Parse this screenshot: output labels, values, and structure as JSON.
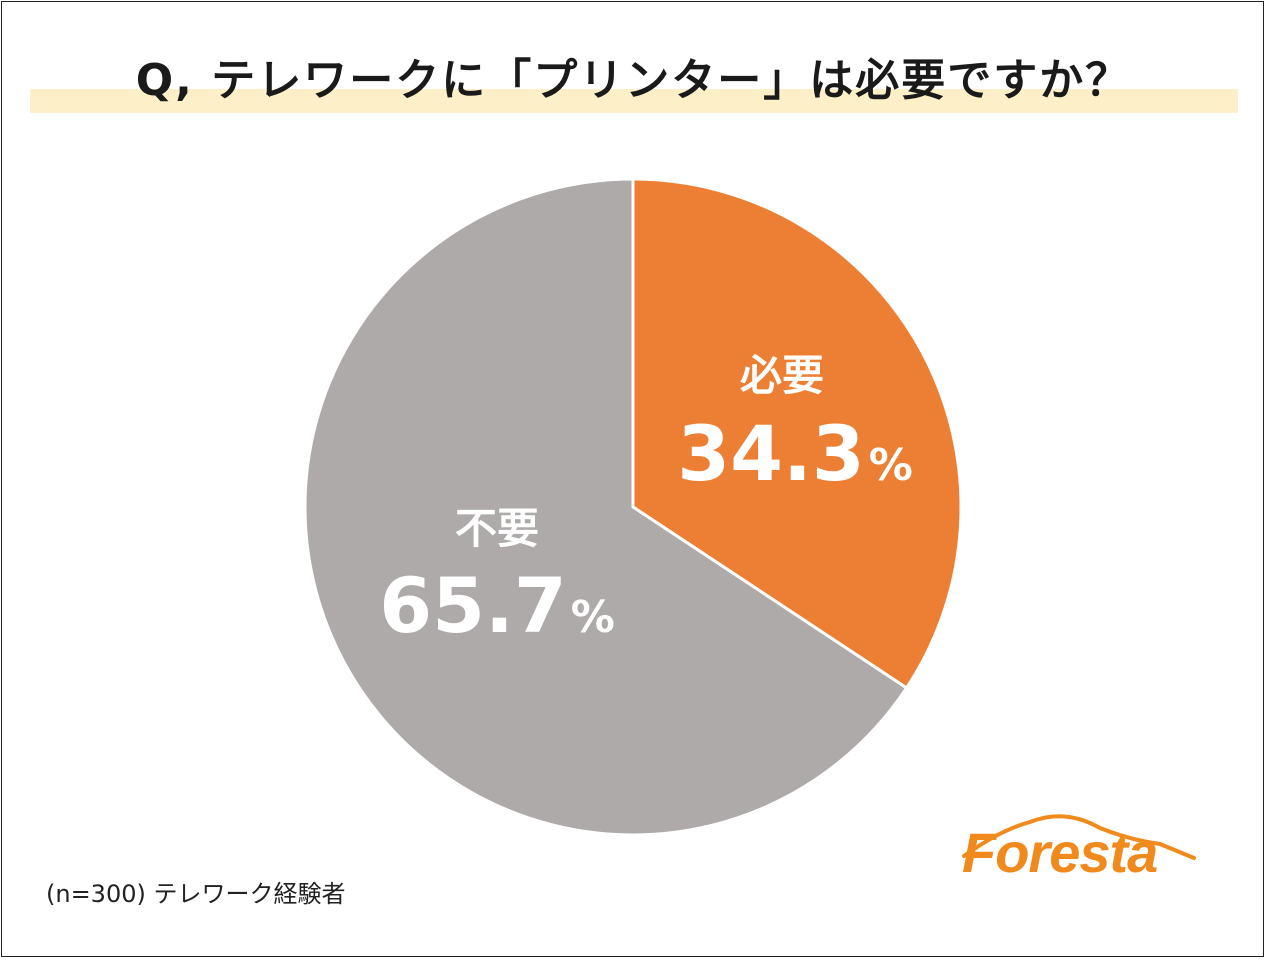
{
  "title": "Q, テレワークに「プリンター」は必要ですか？",
  "note": "(n=300) テレワーク経験者",
  "logo": {
    "text": "Foresta",
    "color": "#f08a1c"
  },
  "chart_data": {
    "type": "pie",
    "unit": "%",
    "start_angle_deg": 0,
    "direction": "clockwise",
    "slices": [
      {
        "label": "必要",
        "value": 34.3,
        "value_text": "34.3",
        "color": "#ec7f33"
      },
      {
        "label": "不要",
        "value": 65.7,
        "value_text": "65.7",
        "color": "#aeaaa9"
      }
    ]
  }
}
